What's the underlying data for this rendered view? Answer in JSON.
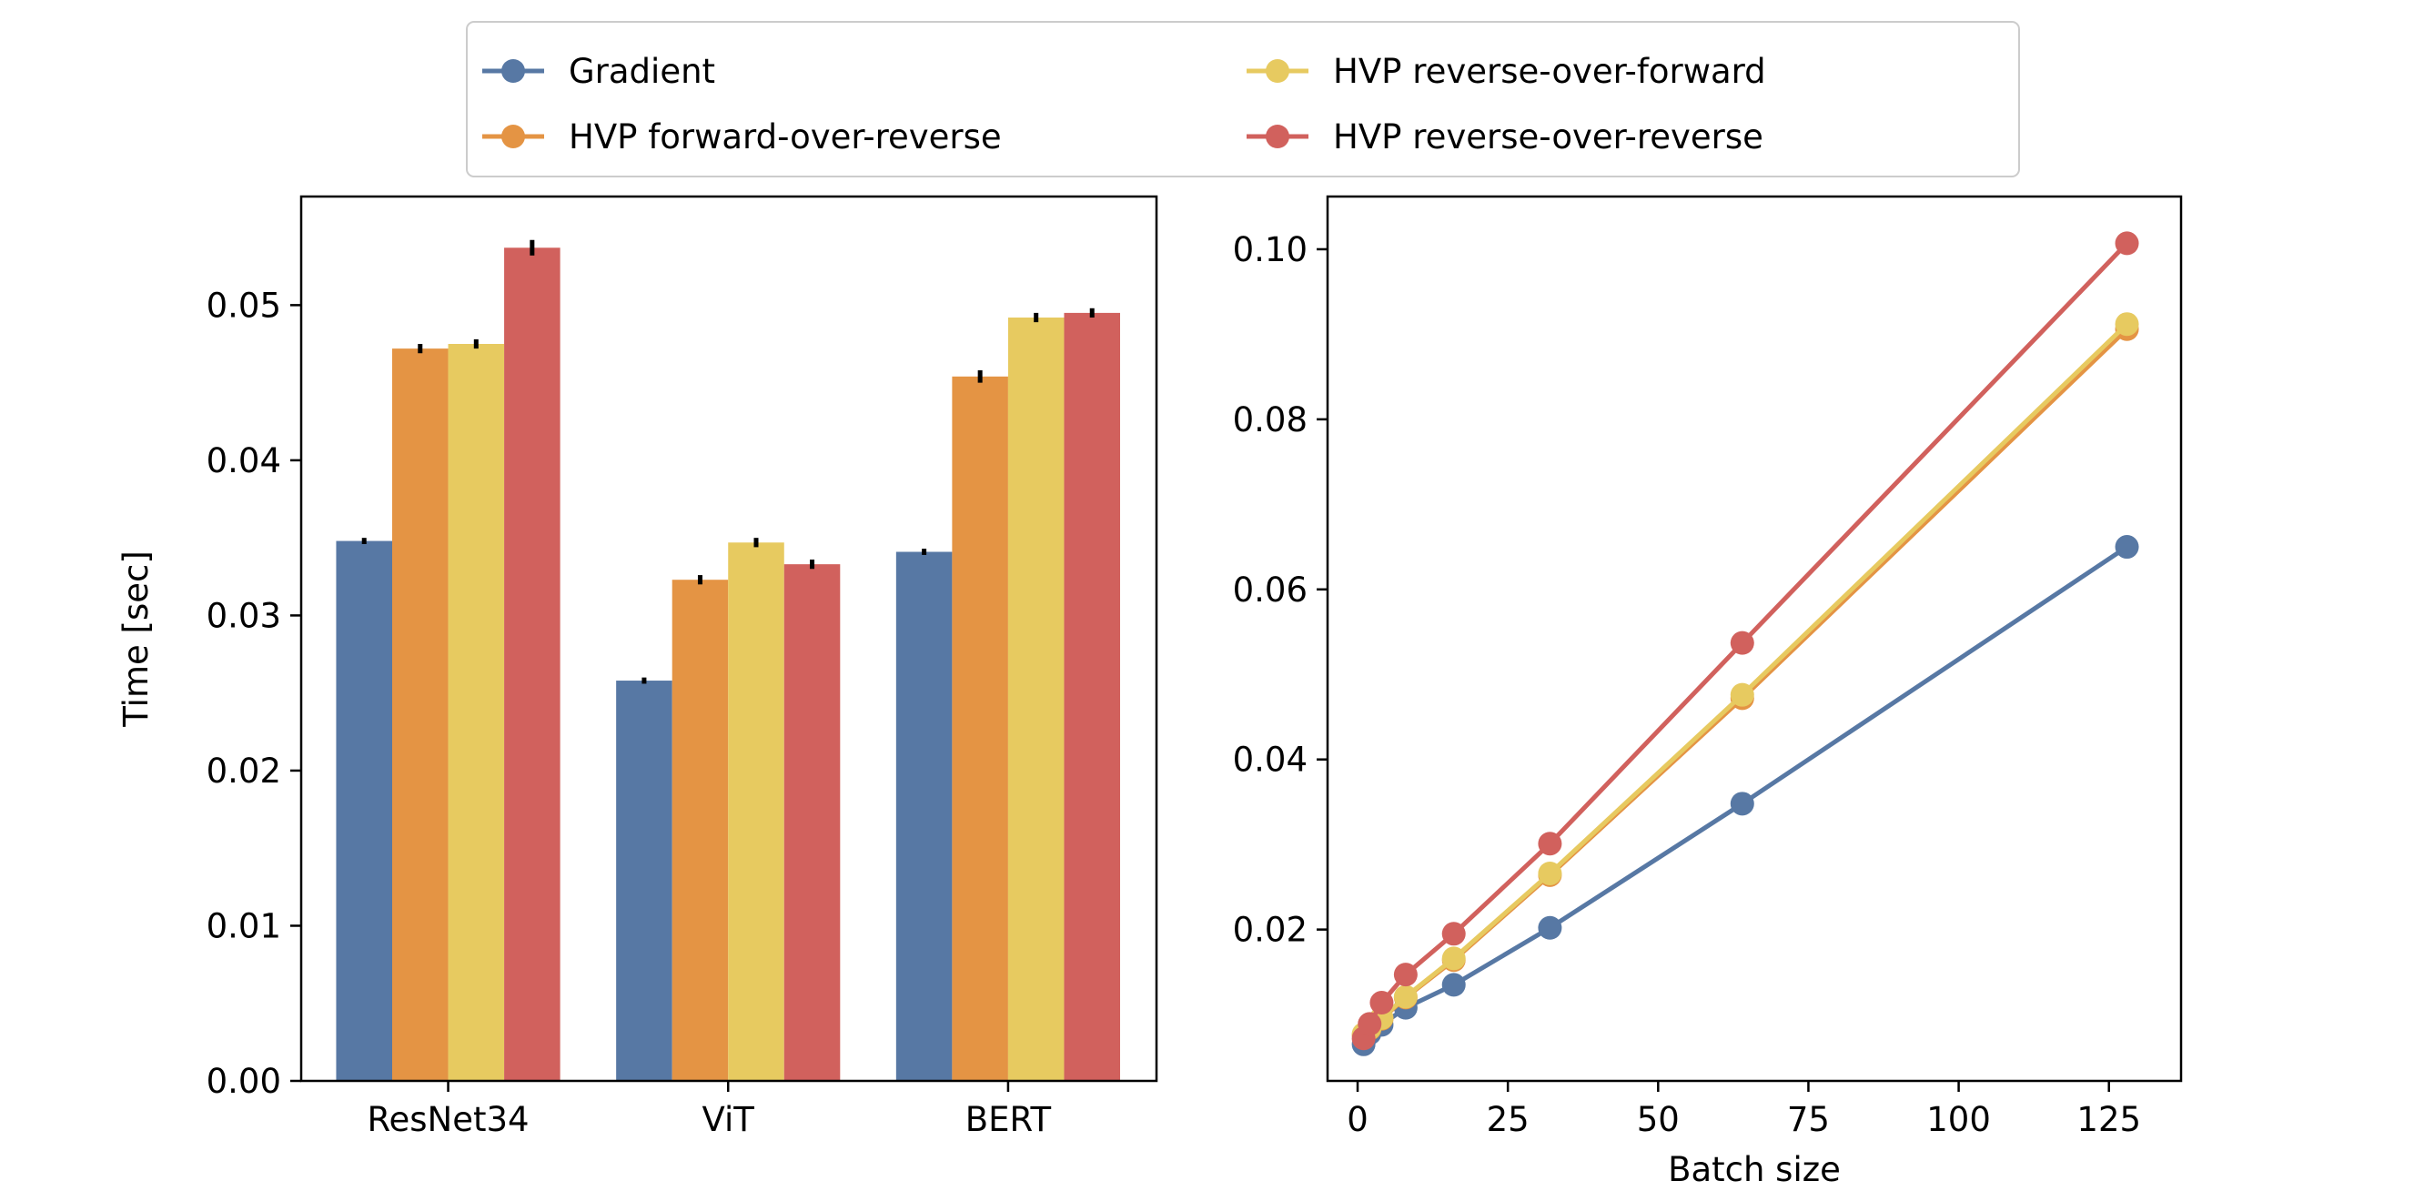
{
  "colors": {
    "Gradient": "#5778a4",
    "HVP forward-over-reverse": "#e49444",
    "HVP reverse-over-forward": "#e7ca60",
    "HVP reverse-over-reverse": "#d1615d"
  },
  "legend": {
    "placement": "top-center, above plots",
    "entries": [
      "Gradient",
      "HVP forward-over-reverse",
      "HVP reverse-over-forward",
      "HVP reverse-over-reverse"
    ]
  },
  "chart_data": [
    {
      "type": "bar",
      "ylabel": "Time [sec]",
      "xlabel": "",
      "categories": [
        "ResNet34",
        "ViT",
        "BERT"
      ],
      "ylim": [
        0,
        0.057
      ],
      "yticks": [
        "0.00",
        "0.01",
        "0.02",
        "0.03",
        "0.04",
        "0.05"
      ],
      "error_bars": true,
      "series": [
        {
          "name": "Gradient",
          "values": [
            0.0348,
            0.0258,
            0.0341
          ],
          "errors": [
            0.0002,
            0.0002,
            0.0002
          ]
        },
        {
          "name": "HVP forward-over-reverse",
          "values": [
            0.0472,
            0.0323,
            0.0454
          ],
          "errors": [
            0.0003,
            0.0003,
            0.0004
          ]
        },
        {
          "name": "HVP reverse-over-forward",
          "values": [
            0.0475,
            0.0347,
            0.0492
          ],
          "errors": [
            0.0003,
            0.0003,
            0.0003
          ]
        },
        {
          "name": "HVP reverse-over-reverse",
          "values": [
            0.0537,
            0.0333,
            0.0495
          ],
          "errors": [
            0.0005,
            0.0003,
            0.0003
          ]
        }
      ]
    },
    {
      "type": "line",
      "xlabel": "Batch size",
      "ylabel": "",
      "xlim": [
        -5,
        137
      ],
      "ylim": [
        0.0022,
        0.1062
      ],
      "xticks": [
        "0",
        "25",
        "50",
        "75",
        "100",
        "125"
      ],
      "yticks": [
        "0.02",
        "0.04",
        "0.06",
        "0.08",
        "0.10"
      ],
      "x": [
        1,
        2,
        4,
        8,
        16,
        32,
        64,
        128
      ],
      "series": [
        {
          "name": "Gradient",
          "values": [
            0.0065,
            0.0078,
            0.0088,
            0.0108,
            0.0135,
            0.0202,
            0.0348,
            0.065
          ]
        },
        {
          "name": "HVP forward-over-reverse",
          "values": [
            0.0076,
            0.0083,
            0.0095,
            0.012,
            0.0164,
            0.0264,
            0.0472,
            0.0906
          ]
        },
        {
          "name": "HVP reverse-over-forward",
          "values": [
            0.0077,
            0.0084,
            0.0096,
            0.0121,
            0.0166,
            0.0266,
            0.0476,
            0.0912
          ]
        },
        {
          "name": "HVP reverse-over-reverse",
          "values": [
            0.0072,
            0.0089,
            0.0114,
            0.0147,
            0.0195,
            0.0301,
            0.0537,
            0.1007
          ]
        }
      ]
    }
  ]
}
